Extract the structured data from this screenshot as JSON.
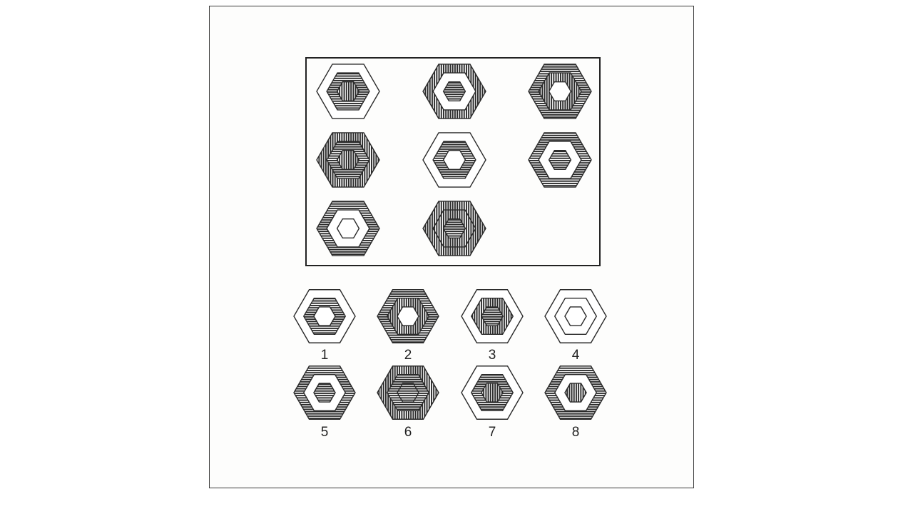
{
  "colors": {
    "ink": "#2a2a2a",
    "paper": "#ffffff",
    "frame": "#3a3a3a"
  },
  "matrix": [
    {
      "pattern": [
        "white",
        "horizontal",
        "vertical"
      ]
    },
    {
      "pattern": [
        "vertical",
        "white",
        "horizontal"
      ]
    },
    {
      "pattern": [
        "horizontal",
        "vertical",
        "white"
      ]
    },
    {
      "pattern": [
        "vertical",
        "horizontal",
        "vertical"
      ]
    },
    {
      "pattern": [
        "white",
        "horizontal",
        "white"
      ]
    },
    {
      "pattern": [
        "horizontal",
        "white",
        "horizontal"
      ]
    },
    {
      "pattern": [
        "horizontal",
        "white",
        "white"
      ]
    },
    {
      "pattern": [
        "vertical",
        "vertical",
        "horizontal"
      ]
    }
  ],
  "options": [
    {
      "label": "1",
      "pattern": [
        "white",
        "horizontal",
        "white"
      ]
    },
    {
      "label": "2",
      "pattern": [
        "horizontal",
        "vertical",
        "white"
      ]
    },
    {
      "label": "3",
      "pattern": [
        "white",
        "vertical",
        "horizontal"
      ]
    },
    {
      "label": "4",
      "pattern": [
        "white",
        "white",
        "white"
      ]
    },
    {
      "label": "5",
      "pattern": [
        "horizontal",
        "white",
        "horizontal"
      ]
    },
    {
      "label": "6",
      "pattern": [
        "vertical",
        "horizontal",
        "horizontal"
      ]
    },
    {
      "label": "7",
      "pattern": [
        "white",
        "horizontal",
        "vertical"
      ]
    },
    {
      "label": "8",
      "pattern": [
        "horizontal",
        "white",
        "vertical"
      ]
    }
  ]
}
